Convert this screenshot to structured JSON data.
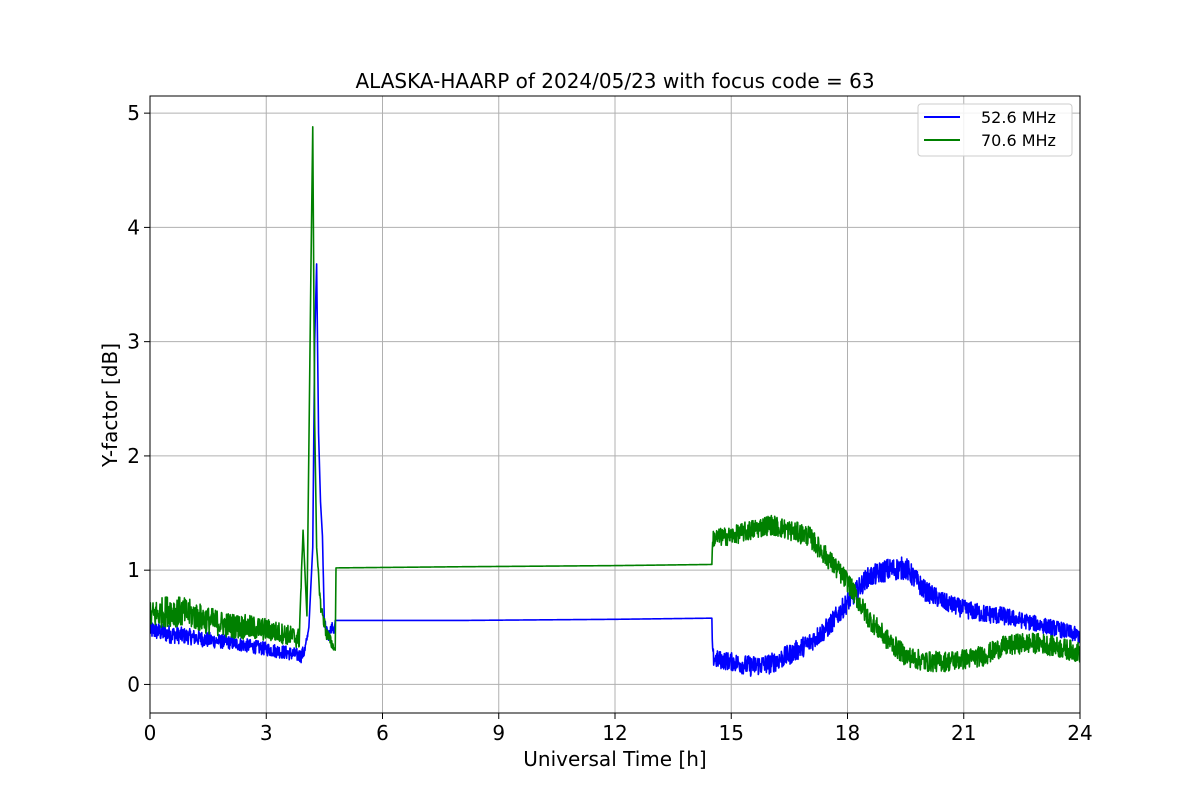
{
  "chart_data": {
    "type": "line",
    "title": "ALASKA-HAARP of 2024/05/23 with focus code = 63",
    "xlabel": "Universal Time [h]",
    "ylabel": "Y-factor [dB]",
    "xlim": [
      0,
      24
    ],
    "ylim": [
      -0.25,
      5.15
    ],
    "xticks": [
      0,
      3,
      6,
      9,
      12,
      15,
      18,
      21,
      24
    ],
    "yticks": [
      0,
      1,
      2,
      3,
      4,
      5
    ],
    "grid": true,
    "legend_position": "top-right",
    "series": [
      {
        "name": "52.6 MHz",
        "color": "#0000ff",
        "x": [
          0,
          0.5,
          1,
          1.5,
          2,
          2.5,
          3,
          3.5,
          3.9,
          4.0,
          4.1,
          4.2,
          4.25,
          4.3,
          4.35,
          4.4,
          4.45,
          4.5,
          4.6,
          4.7,
          4.75,
          4.78,
          8,
          12,
          14.5,
          14.52,
          14.6,
          15,
          15.5,
          16,
          16.5,
          17,
          17.5,
          18,
          18.5,
          19,
          19.5,
          20,
          20.5,
          21,
          21.5,
          22,
          22.5,
          23,
          23.5,
          24
        ],
        "y": [
          0.48,
          0.44,
          0.42,
          0.39,
          0.37,
          0.34,
          0.31,
          0.28,
          0.25,
          0.3,
          0.5,
          1.2,
          3.0,
          3.68,
          2.2,
          1.6,
          1.3,
          0.55,
          0.42,
          0.5,
          0.45,
          0.56,
          0.56,
          0.57,
          0.58,
          0.24,
          0.22,
          0.2,
          0.16,
          0.18,
          0.26,
          0.36,
          0.5,
          0.72,
          0.93,
          1.0,
          1.02,
          0.82,
          0.72,
          0.66,
          0.62,
          0.6,
          0.56,
          0.52,
          0.48,
          0.42
        ],
        "noise": [
          0.08,
          0.08,
          0.07,
          0.07,
          0.06,
          0.06,
          0.06,
          0.06,
          0.06,
          0.06,
          0.0,
          0.0,
          0.0,
          0.0,
          0.0,
          0.0,
          0.0,
          0.05,
          0.05,
          0.05,
          0.0,
          0.0,
          0.0,
          0.0,
          0.0,
          0.08,
          0.08,
          0.08,
          0.09,
          0.09,
          0.09,
          0.09,
          0.09,
          0.09,
          0.09,
          0.1,
          0.1,
          0.09,
          0.08,
          0.08,
          0.08,
          0.08,
          0.07,
          0.07,
          0.07,
          0.07
        ]
      },
      {
        "name": "70.6 MHz",
        "color": "#008000",
        "x": [
          0,
          0.5,
          1,
          1.5,
          2,
          2.5,
          3,
          3.5,
          3.85,
          3.95,
          4.05,
          4.15,
          4.2,
          4.25,
          4.3,
          4.4,
          4.55,
          4.7,
          4.78,
          4.8,
          8,
          12,
          14.5,
          14.52,
          15,
          15.5,
          16,
          16.5,
          17,
          17.5,
          18,
          18.5,
          19,
          19.5,
          20,
          20.5,
          21,
          21.5,
          22,
          22.5,
          23,
          23.5,
          24
        ],
        "y": [
          0.6,
          0.65,
          0.62,
          0.56,
          0.52,
          0.5,
          0.48,
          0.44,
          0.4,
          1.35,
          0.6,
          3.55,
          4.88,
          2.3,
          1.2,
          0.7,
          0.45,
          0.35,
          0.3,
          1.02,
          1.03,
          1.04,
          1.05,
          1.28,
          1.3,
          1.35,
          1.4,
          1.35,
          1.3,
          1.1,
          0.9,
          0.6,
          0.4,
          0.25,
          0.2,
          0.2,
          0.22,
          0.25,
          0.33,
          0.36,
          0.36,
          0.32,
          0.28
        ],
        "noise": [
          0.12,
          0.14,
          0.13,
          0.12,
          0.11,
          0.11,
          0.1,
          0.09,
          0.09,
          0.0,
          0.0,
          0.0,
          0.0,
          0.0,
          0.0,
          0.06,
          0.06,
          0.05,
          0.0,
          0.0,
          0.0,
          0.0,
          0.0,
          0.08,
          0.08,
          0.09,
          0.09,
          0.09,
          0.09,
          0.09,
          0.09,
          0.09,
          0.09,
          0.09,
          0.09,
          0.09,
          0.09,
          0.09,
          0.09,
          0.09,
          0.09,
          0.09,
          0.09
        ]
      }
    ]
  }
}
